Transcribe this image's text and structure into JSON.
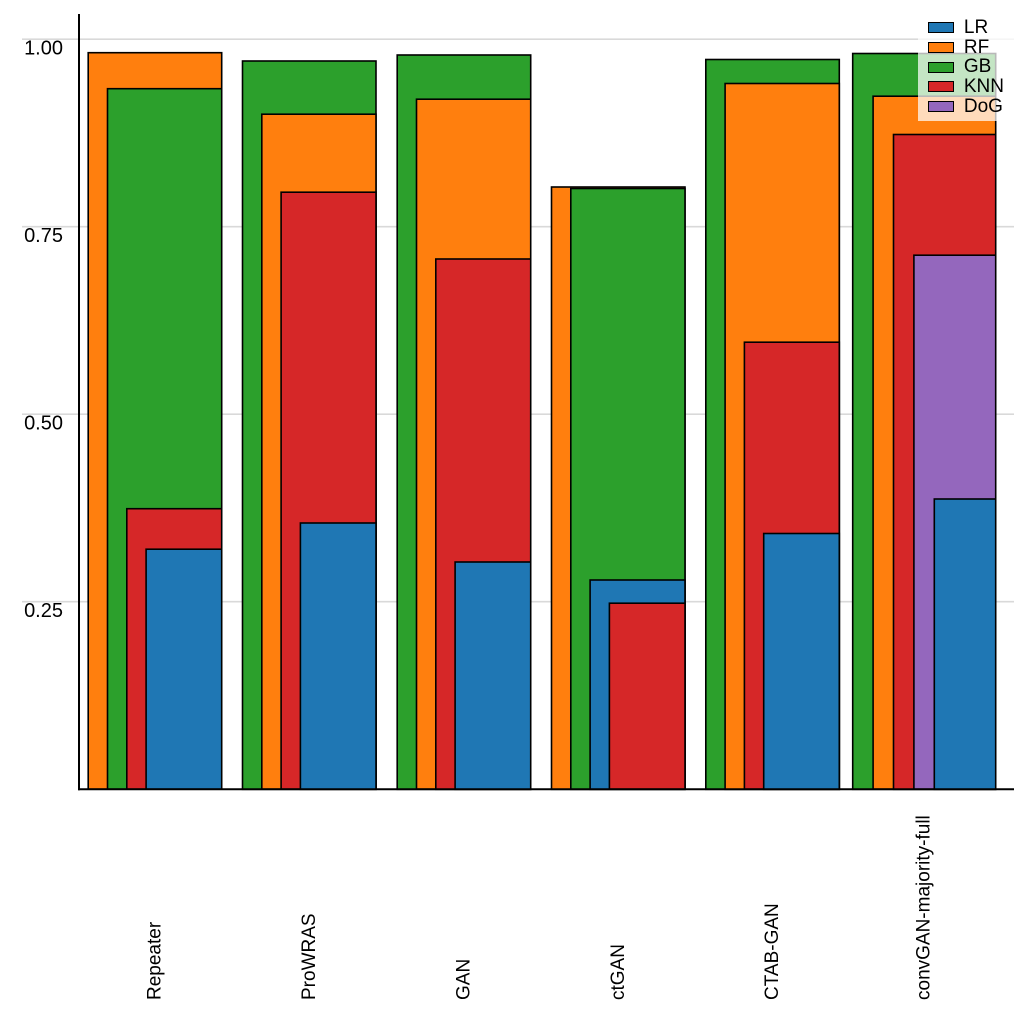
{
  "figure": {
    "background": "#ffffff"
  },
  "chart_data": {
    "type": "bar",
    "variant": "layered-overlapping-nested-bars",
    "title": "",
    "xlabel": "",
    "ylabel": "",
    "categories": [
      "Repeater",
      "ProWRAS",
      "GAN",
      "ctGAN",
      "CTAB-GAN",
      "convGAN-majority-full"
    ],
    "series": [
      {
        "name": "LR",
        "color": "#1f77b4",
        "values": [
          0.32,
          0.355,
          0.303,
          0.279,
          0.341,
          0.387
        ]
      },
      {
        "name": "RF",
        "color": "#ff7f0e",
        "values": [
          0.982,
          0.9,
          0.92,
          0.803,
          0.941,
          0.924
        ]
      },
      {
        "name": "GB",
        "color": "#2ca02c",
        "values": [
          0.934,
          0.971,
          0.979,
          0.801,
          0.973,
          0.981
        ]
      },
      {
        "name": "KNN",
        "color": "#d62728",
        "values": [
          0.374,
          0.796,
          0.707,
          0.248,
          0.596,
          0.873
        ]
      },
      {
        "name": "DoG",
        "color": "#9467bd",
        "values": [
          null,
          null,
          null,
          null,
          null,
          0.712
        ]
      }
    ],
    "y_ticks": [
      {
        "label": "1.00",
        "value": 1.0
      },
      {
        "label": "0.75",
        "value": 0.75
      },
      {
        "label": "0.50",
        "value": 0.5
      },
      {
        "label": "0.25",
        "value": 0.25
      }
    ],
    "ylim": [
      0,
      1.03
    ],
    "grid": true,
    "gridline_color": "#d9d9d9",
    "axis_color": "#000000",
    "bar_border_color": "#000000",
    "text_color": "#000000",
    "legend": {
      "position": "top-right",
      "entries": [
        "LR",
        "RF",
        "GB",
        "KNN",
        "DoG"
      ]
    }
  }
}
